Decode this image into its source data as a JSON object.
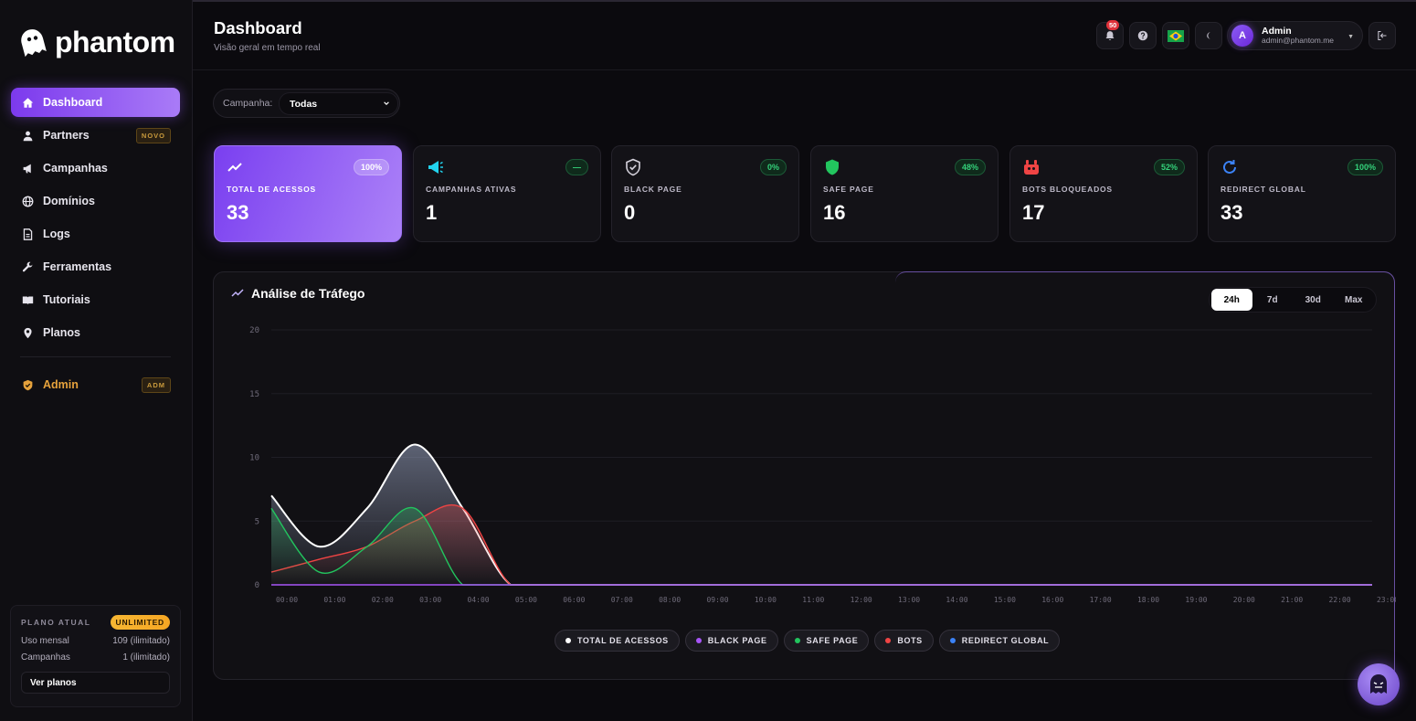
{
  "brand": {
    "name": "phantom"
  },
  "nav": {
    "items": [
      {
        "label": "Dashboard",
        "icon": "home-icon",
        "active": true
      },
      {
        "label": "Partners",
        "icon": "user-icon",
        "badge": "NOVO"
      },
      {
        "label": "Campanhas",
        "icon": "megaphone-icon"
      },
      {
        "label": "Domínios",
        "icon": "globe-icon"
      },
      {
        "label": "Logs",
        "icon": "file-icon"
      },
      {
        "label": "Ferramentas",
        "icon": "wrench-icon"
      },
      {
        "label": "Tutoriais",
        "icon": "book-icon"
      },
      {
        "label": "Planos",
        "icon": "pin-icon"
      }
    ],
    "admin": {
      "label": "Admin",
      "badge": "ADM",
      "icon": "shield-icon"
    }
  },
  "plan": {
    "title": "PLANO ATUAL",
    "badge": "UNLIMITED",
    "rows": [
      {
        "label": "Uso mensal",
        "value": "109 (ilimitado)"
      },
      {
        "label": "Campanhas",
        "value": "1 (ilimitado)"
      }
    ],
    "button": "Ver planos"
  },
  "header": {
    "title": "Dashboard",
    "subtitle": "Visão geral em tempo real",
    "notifications": "50",
    "user": {
      "initial": "A",
      "name": "Admin",
      "email": "admin@phantom.me"
    }
  },
  "filter": {
    "label": "Campanha:",
    "value": "Todas"
  },
  "cards": [
    {
      "label": "TOTAL DE ACESSOS",
      "value": "33",
      "pct": "100%",
      "icon": "trend-icon",
      "color": "#ffffff"
    },
    {
      "label": "CAMPANHAS ATIVAS",
      "value": "1",
      "pct": "—",
      "icon": "megaphone-icon",
      "color": "#22d3ee"
    },
    {
      "label": "BLACK PAGE",
      "value": "0",
      "pct": "0%",
      "icon": "shield-check-icon",
      "color": "#d6d3dd"
    },
    {
      "label": "SAFE PAGE",
      "value": "16",
      "pct": "48%",
      "icon": "shield-icon",
      "color": "#22c55e"
    },
    {
      "label": "BOTS BLOQUEADOS",
      "value": "17",
      "pct": "52%",
      "icon": "bot-icon",
      "color": "#ef4444"
    },
    {
      "label": "REDIRECT GLOBAL",
      "value": "33",
      "pct": "100%",
      "icon": "refresh-icon",
      "color": "#3b82f6"
    }
  ],
  "panel": {
    "title": "Análise de Tráfego",
    "ranges": [
      "24h",
      "7d",
      "30d",
      "Max"
    ],
    "active_range": "24h"
  },
  "chart_data": {
    "type": "area",
    "x": [
      "00:00",
      "01:00",
      "02:00",
      "03:00",
      "04:00",
      "05:00",
      "06:00",
      "07:00",
      "08:00",
      "09:00",
      "10:00",
      "11:00",
      "12:00",
      "13:00",
      "14:00",
      "15:00",
      "16:00",
      "17:00",
      "18:00",
      "19:00",
      "20:00",
      "21:00",
      "22:00",
      "23:00"
    ],
    "ylim": [
      0,
      20
    ],
    "yticks": [
      0,
      5,
      10,
      15,
      20
    ],
    "series": [
      {
        "name": "TOTAL DE ACESSOS",
        "color": "#ffffff",
        "values": [
          7,
          3,
          6,
          11,
          6,
          0,
          0,
          0,
          0,
          0,
          0,
          0,
          0,
          0,
          0,
          0,
          0,
          0,
          0,
          0,
          0,
          0,
          0,
          0
        ]
      },
      {
        "name": "BLACK PAGE",
        "color": "#a855f7",
        "values": [
          0,
          0,
          0,
          0,
          0,
          0,
          0,
          0,
          0,
          0,
          0,
          0,
          0,
          0,
          0,
          0,
          0,
          0,
          0,
          0,
          0,
          0,
          0,
          0
        ]
      },
      {
        "name": "SAFE PAGE",
        "color": "#22c55e",
        "values": [
          6,
          1,
          3,
          6,
          0,
          0,
          0,
          0,
          0,
          0,
          0,
          0,
          0,
          0,
          0,
          0,
          0,
          0,
          0,
          0,
          0,
          0,
          0,
          0
        ]
      },
      {
        "name": "BOTS",
        "color": "#ef4444",
        "values": [
          1,
          2,
          3,
          5,
          6,
          0,
          0,
          0,
          0,
          0,
          0,
          0,
          0,
          0,
          0,
          0,
          0,
          0,
          0,
          0,
          0,
          0,
          0,
          0
        ]
      },
      {
        "name": "REDIRECT GLOBAL",
        "color": "#3b82f6",
        "values": [
          7,
          3,
          6,
          11,
          6,
          0,
          0,
          0,
          0,
          0,
          0,
          0,
          0,
          0,
          0,
          0,
          0,
          0,
          0,
          0,
          0,
          0,
          0,
          0
        ]
      }
    ],
    "grid": true,
    "legend": "bottom-center"
  }
}
